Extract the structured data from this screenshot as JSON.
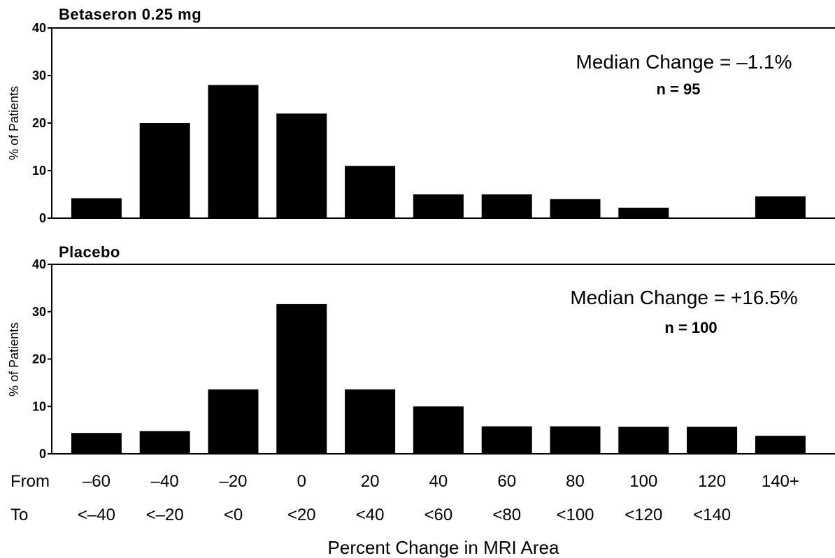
{
  "chart_data": [
    {
      "type": "bar",
      "title": "Betaseron 0.25 mg",
      "ylabel": "% of Patients",
      "ylim": [
        0,
        40
      ],
      "yticks": [
        "0",
        "10",
        "20",
        "30",
        "40"
      ],
      "categories": [
        "-60 to <-40",
        "-40 to <-20",
        "-20 to <0",
        "0 to <20",
        "20 to <40",
        "40 to <60",
        "60 to <80",
        "80 to <100",
        "100 to <120",
        "120 to <140",
        "140+"
      ],
      "values": [
        4.2,
        20,
        28,
        22,
        11,
        5,
        5,
        4,
        2.2,
        0,
        4.6
      ],
      "annotation": {
        "median": "Median Change = –1.1%",
        "n": "n = 95"
      }
    },
    {
      "type": "bar",
      "title": "Placebo",
      "ylabel": "% of Patients",
      "ylim": [
        0,
        40
      ],
      "yticks": [
        "0",
        "10",
        "20",
        "30",
        "40"
      ],
      "categories": [
        "-60 to <-40",
        "-40 to <-20",
        "-20 to <0",
        "0 to <20",
        "20 to <40",
        "40 to <60",
        "60 to <80",
        "80 to <100",
        "100 to <120",
        "120 to <140",
        "140+"
      ],
      "values": [
        4.4,
        4.8,
        13.6,
        31.6,
        13.6,
        10,
        5.8,
        5.8,
        5.7,
        5.7,
        3.8
      ],
      "annotation": {
        "median": "Median Change = +16.5%",
        "n": "n = 100"
      }
    }
  ],
  "x_axis": {
    "from_label": "From",
    "to_label": "To",
    "from": [
      "–60",
      "–40",
      "–20",
      "0",
      "20",
      "40",
      "60",
      "80",
      "100",
      "120",
      "140+"
    ],
    "to": [
      "<–40",
      "<–20",
      "<0",
      "<20",
      "<40",
      "<60",
      "<80",
      "<100",
      "<120",
      "<140",
      ""
    ],
    "xlabel": "Percent Change in MRI Area"
  }
}
